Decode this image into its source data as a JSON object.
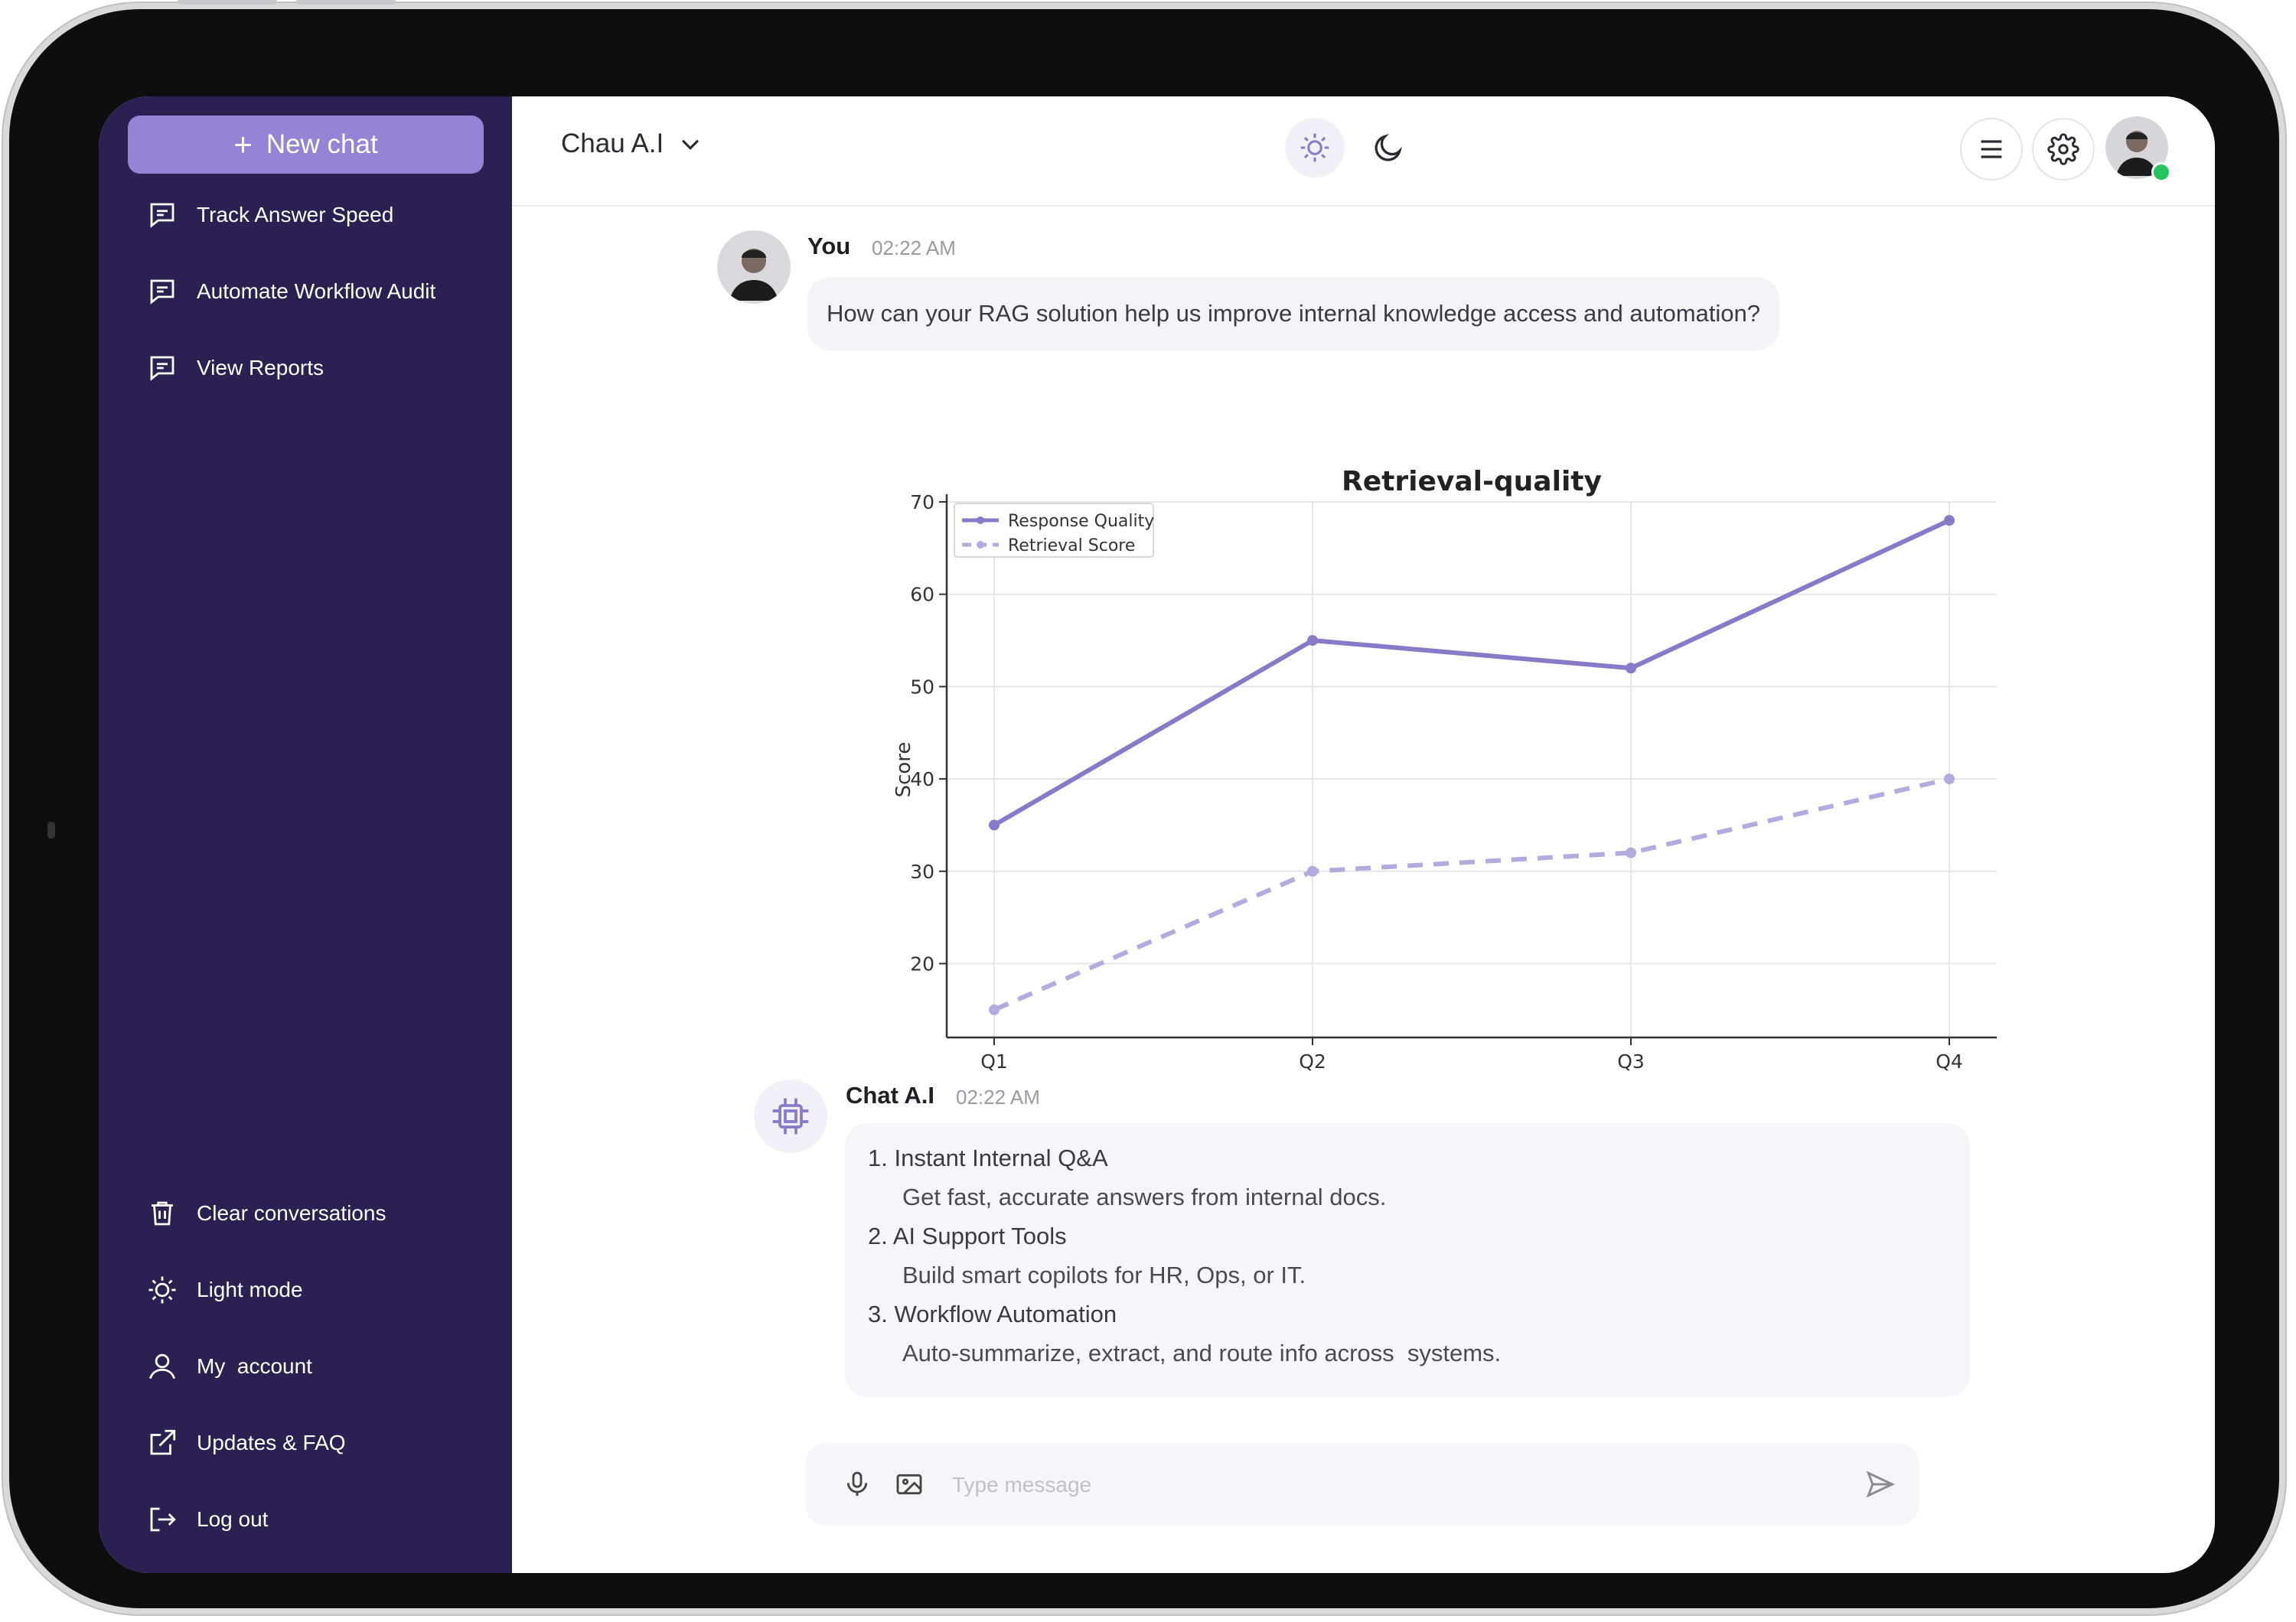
{
  "sidebar": {
    "new_chat_label": "New chat",
    "top_items": [
      {
        "label": "Track Answer Speed",
        "icon": "chat-icon"
      },
      {
        "label": "Automate Workflow Audit",
        "icon": "chat-icon"
      },
      {
        "label": "View Reports",
        "icon": "chat-icon"
      }
    ],
    "bottom_items": [
      {
        "label": "Clear conversations",
        "icon": "trash-icon"
      },
      {
        "label": "Light mode",
        "icon": "sun-icon"
      },
      {
        "label": "My  account",
        "icon": "user-icon"
      },
      {
        "label": "Updates & FAQ",
        "icon": "external-link-icon"
      },
      {
        "label": "Log out",
        "icon": "logout-icon"
      }
    ]
  },
  "header": {
    "title": "Chau A.I",
    "icons": [
      "chevron-down-icon",
      "sun-icon",
      "moon-icon",
      "menu-icon",
      "gear-icon",
      "avatar"
    ]
  },
  "messages": {
    "user": {
      "name": "You",
      "time": "02:22 AM",
      "text": "How can your RAG solution help us improve internal knowledge access and automation?"
    },
    "bot": {
      "name": "Chat A.I",
      "time": "02:22 AM",
      "items": [
        {
          "title": "1. Instant Internal Q&A",
          "detail": "Get fast, accurate answers from internal docs."
        },
        {
          "title": "2. AI Support Tools",
          "detail": "Build smart copilots for HR, Ops, or IT."
        },
        {
          "title": "3. Workflow Automation",
          "detail": "Auto-summarize, extract, and route info across  systems."
        }
      ]
    }
  },
  "composer": {
    "placeholder": "Type message",
    "icons": [
      "microphone-icon",
      "image-icon",
      "send-icon"
    ]
  },
  "colors": {
    "sidebar_bg": "#2c2052",
    "accent": "#9683d6",
    "line_primary": "#8a78c8",
    "line_secondary": "#b6a9e0",
    "online": "#22c55e"
  },
  "chart_data": {
    "type": "line",
    "title": "Retrieval-quality",
    "xlabel": "",
    "ylabel": "Score",
    "categories": [
      "Q1",
      "Q2",
      "Q3",
      "Q4"
    ],
    "ylim": [
      12,
      70
    ],
    "yticks": [
      20,
      30,
      40,
      50,
      60,
      70
    ],
    "grid": true,
    "legend_position": "top-left",
    "series": [
      {
        "name": "Response Quality",
        "values": [
          35,
          55,
          52,
          68
        ],
        "style": "solid",
        "color": "#8a78c8"
      },
      {
        "name": "Retrieval Score",
        "values": [
          15,
          30,
          32,
          40
        ],
        "style": "dashed",
        "color": "#b6a9e0"
      }
    ]
  }
}
